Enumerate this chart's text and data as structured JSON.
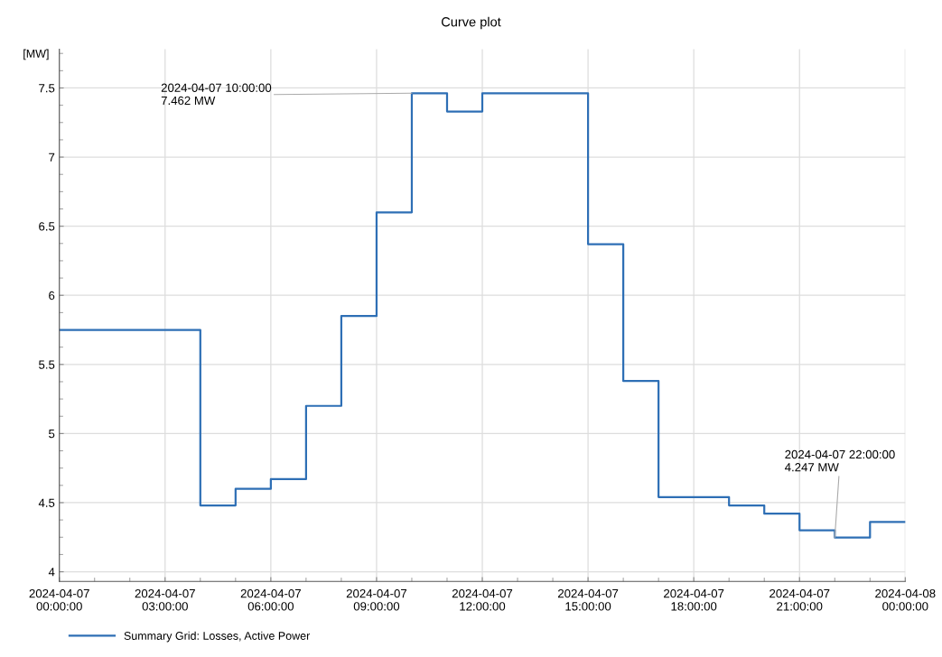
{
  "chart_data": {
    "type": "step",
    "title": "Curve plot",
    "ylabel": "[MW]",
    "x": [
      "2024-04-07T00:00",
      "2024-04-07T01:00",
      "2024-04-07T02:00",
      "2024-04-07T03:00",
      "2024-04-07T04:00",
      "2024-04-07T05:00",
      "2024-04-07T06:00",
      "2024-04-07T07:00",
      "2024-04-07T08:00",
      "2024-04-07T09:00",
      "2024-04-07T10:00",
      "2024-04-07T11:00",
      "2024-04-07T12:00",
      "2024-04-07T13:00",
      "2024-04-07T14:00",
      "2024-04-07T15:00",
      "2024-04-07T16:00",
      "2024-04-07T17:00",
      "2024-04-07T18:00",
      "2024-04-07T19:00",
      "2024-04-07T20:00",
      "2024-04-07T21:00",
      "2024-04-07T22:00",
      "2024-04-07T23:00",
      "2024-04-08T00:00"
    ],
    "series": [
      {
        "name": "Summary Grid: Losses, Active Power",
        "color": "#2e6fb5",
        "values": [
          5.75,
          5.75,
          5.75,
          5.75,
          4.48,
          4.6,
          4.67,
          5.2,
          5.85,
          6.6,
          7.462,
          7.33,
          7.462,
          7.462,
          7.462,
          6.37,
          5.38,
          4.54,
          4.54,
          4.48,
          4.42,
          4.3,
          4.247,
          4.36,
          4.36
        ]
      }
    ],
    "ylim": [
      3.93,
      7.78
    ],
    "yticks": [
      4,
      4.5,
      5,
      5.5,
      6,
      6.5,
      7,
      7.5
    ],
    "xlim": [
      "2024-04-07T00:00",
      "2024-04-08T00:00"
    ],
    "xticks": [
      {
        "value": "2024-04-07T00:00",
        "label": "2024-04-07\n00:00:00"
      },
      {
        "value": "2024-04-07T03:00",
        "label": "2024-04-07\n03:00:00"
      },
      {
        "value": "2024-04-07T06:00",
        "label": "2024-04-07\n06:00:00"
      },
      {
        "value": "2024-04-07T09:00",
        "label": "2024-04-07\n09:00:00"
      },
      {
        "value": "2024-04-07T12:00",
        "label": "2024-04-07\n12:00:00"
      },
      {
        "value": "2024-04-07T15:00",
        "label": "2024-04-07\n15:00:00"
      },
      {
        "value": "2024-04-07T18:00",
        "label": "2024-04-07\n18:00:00"
      },
      {
        "value": "2024-04-07T21:00",
        "label": "2024-04-07\n21:00:00"
      },
      {
        "value": "2024-04-08T00:00",
        "label": "2024-04-08\n00:00:00"
      }
    ],
    "annotations": [
      {
        "text": "2024-04-07 10:00:00\n7.462 MW",
        "x": "2024-04-07T10:00",
        "y": 7.462
      },
      {
        "text": "2024-04-07 22:00:00\n4.247 MW",
        "x": "2024-04-07T22:00",
        "y": 4.247
      }
    ],
    "grid": true,
    "legend": "bottom",
    "line_style": "solid",
    "marker": "none"
  }
}
